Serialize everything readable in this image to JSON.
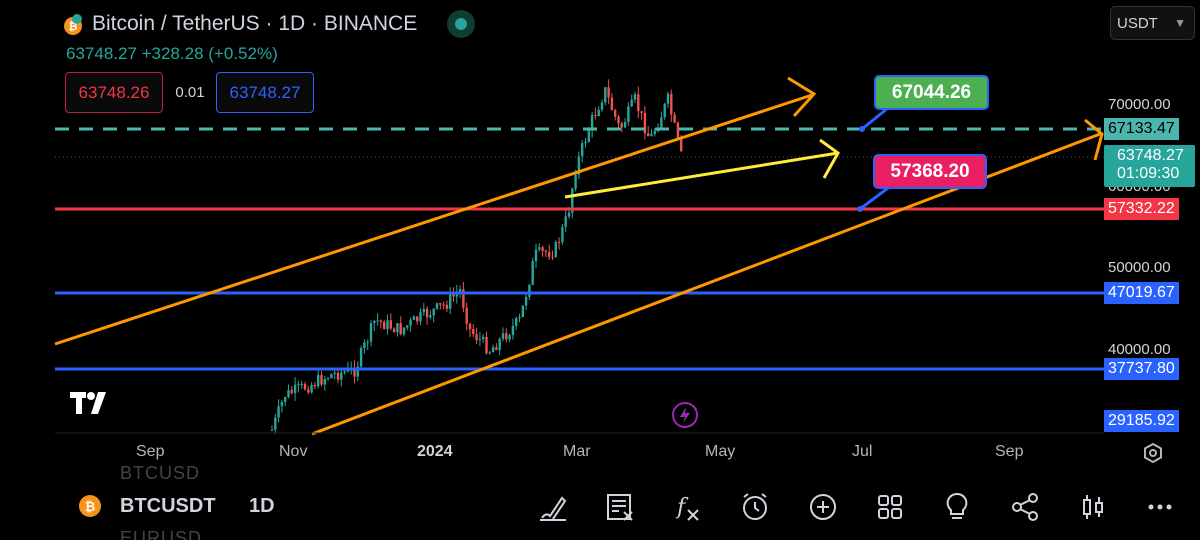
{
  "header": {
    "title": "Bitcoin / TetherUS · 1D · BINANCE",
    "price_change": "63748.27 +328.28 (+0.52%)",
    "sell_price": "63748.26",
    "spread": "0.01",
    "buy_price": "63748.27",
    "currency": "USDT"
  },
  "price_axis": {
    "ticks": [
      "70000.00",
      "60000.00",
      "50000.00",
      "40000.00"
    ],
    "labels": {
      "dashed_level": "67133.47",
      "last_price": "63748.27",
      "countdown": "01:09:30",
      "red_level": "57332.22",
      "blue_level_1": "47019.67",
      "blue_level_2": "37737.80",
      "bottom_level": "29185.92"
    }
  },
  "annotations": {
    "green_tag": "67044.26",
    "pink_tag": "57368.20"
  },
  "time_axis": [
    "Sep",
    "Nov",
    "2024",
    "Mar",
    "May",
    "Jul",
    "Sep"
  ],
  "bottom_bar": {
    "symbol": "BTCUSDT",
    "interval": "1D",
    "ghost_symbol_above": "BTCUSD",
    "ghost_symbol_below": "EURUSD",
    "tools": [
      "draw-icon",
      "note-icon",
      "indicator-icon",
      "alert-icon",
      "add-icon",
      "layout-icon",
      "idea-icon",
      "share-icon",
      "candle-type-icon",
      "more-icon"
    ]
  },
  "colors": {
    "background": "#000000",
    "up": "#26a69a",
    "down": "#ef5350",
    "orange_channel": "#ff9800",
    "yellow_line": "#ffeb3b",
    "red_level": "#f23645",
    "blue_level": "#2962ff",
    "dashed_level": "#4db6ac",
    "green_tag": "#4caf50",
    "pink_tag": "#e91e63"
  }
}
